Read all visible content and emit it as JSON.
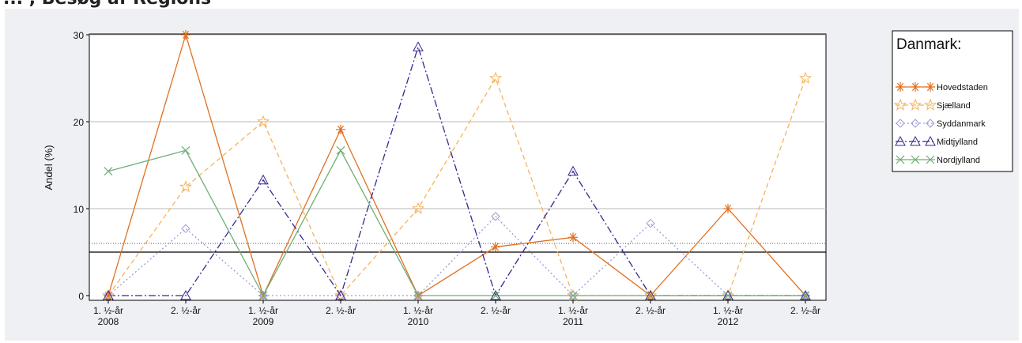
{
  "page": {
    "title": "... , Besøg af Regions"
  },
  "chart_data": {
    "type": "line",
    "xlabel": "",
    "ylabel": "Andel (%)",
    "ylim": [
      0,
      30
    ],
    "yticks": [
      0,
      10,
      20,
      30
    ],
    "categories": [
      [
        "1. ½-år",
        "2008"
      ],
      [
        "2. ½-år",
        ""
      ],
      [
        "1. ½-år",
        "2009"
      ],
      [
        "2. ½-år",
        ""
      ],
      [
        "1. ½-år",
        "2010"
      ],
      [
        "2. ½-år",
        ""
      ],
      [
        "1. ½-år",
        "2011"
      ],
      [
        "2. ½-år",
        ""
      ],
      [
        "1. ½-år",
        "2012"
      ],
      [
        "2. ½-år",
        ""
      ]
    ],
    "grid": true,
    "reference_lines": [
      {
        "value": 5,
        "style": "solid",
        "color": "#000000"
      },
      {
        "value": 6,
        "style": "dotted",
        "color": "#555555"
      }
    ],
    "legend": {
      "title": "Danmark:",
      "position": "right"
    },
    "series": [
      {
        "name": "Hovedstaden",
        "color": "#e07020",
        "dash": "",
        "marker": "asterisk",
        "values": [
          0,
          30,
          0,
          19.1,
          0,
          5.6,
          6.7,
          0,
          10,
          0
        ]
      },
      {
        "name": "Sjælland",
        "color": "#f5b35c",
        "dash": "6,4",
        "marker": "star",
        "values": [
          0,
          12.5,
          20,
          0,
          10,
          25,
          0,
          0,
          0,
          25
        ]
      },
      {
        "name": "Syddanmark",
        "color": "#9a9ad8",
        "dash": "2,3",
        "marker": "diamond",
        "values": [
          0,
          7.7,
          0,
          0,
          0,
          9.1,
          0,
          8.3,
          0,
          0
        ]
      },
      {
        "name": "Midtjylland",
        "color": "#3a2590",
        "dash": "9,3,2,3",
        "marker": "triangle",
        "values": [
          0,
          0,
          13.3,
          0,
          28.6,
          0,
          14.3,
          0,
          0,
          0
        ]
      },
      {
        "name": "Nordjylland",
        "color": "#6fae74",
        "dash": "",
        "marker": "cross",
        "values": [
          14.3,
          16.7,
          0,
          16.7,
          0,
          0,
          0,
          0,
          0,
          0
        ]
      }
    ]
  }
}
